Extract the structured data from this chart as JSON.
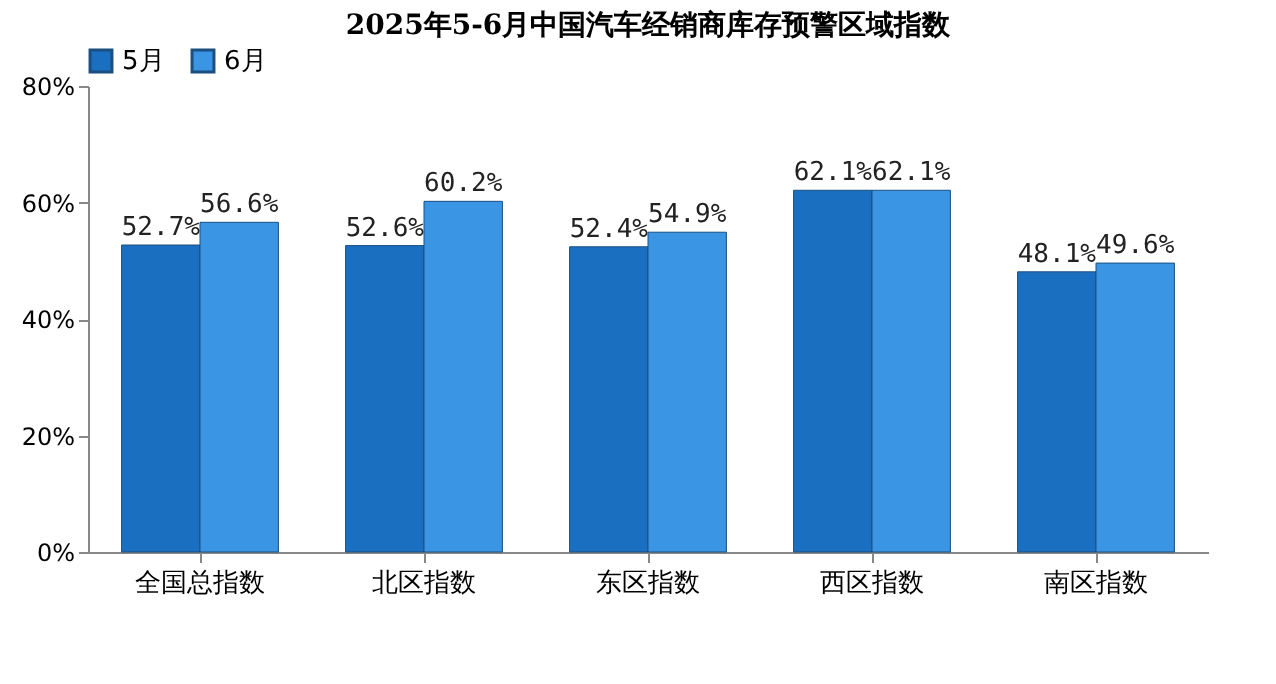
{
  "chart_data": {
    "type": "bar",
    "title": "2025年5-6月中国汽车经销商库存预警区域指数",
    "categories": [
      "全国总指数",
      "北区指数",
      "东区指数",
      "西区指数",
      "南区指数"
    ],
    "series": [
      {
        "name": "5月",
        "color": "#1a6fc0",
        "values": [
          52.7,
          52.6,
          52.4,
          62.1,
          48.1
        ],
        "value_labels": [
          "52.7%",
          "52.6%",
          "52.4%",
          "62.1%",
          "48.1%"
        ]
      },
      {
        "name": "6月",
        "color": "#3a95e4",
        "values": [
          56.6,
          60.2,
          54.9,
          62.1,
          49.6
        ],
        "value_labels": [
          "56.6%",
          "60.2%",
          "54.9%",
          "62.1%",
          "49.6%"
        ]
      }
    ],
    "ylim": [
      0,
      80
    ],
    "yticks": [
      {
        "value": 0,
        "label": "0%"
      },
      {
        "value": 20,
        "label": "20%"
      },
      {
        "value": 40,
        "label": "40%"
      },
      {
        "value": 60,
        "label": "60%"
      },
      {
        "value": 80,
        "label": "80%"
      }
    ],
    "grid": false,
    "legend": "top"
  }
}
